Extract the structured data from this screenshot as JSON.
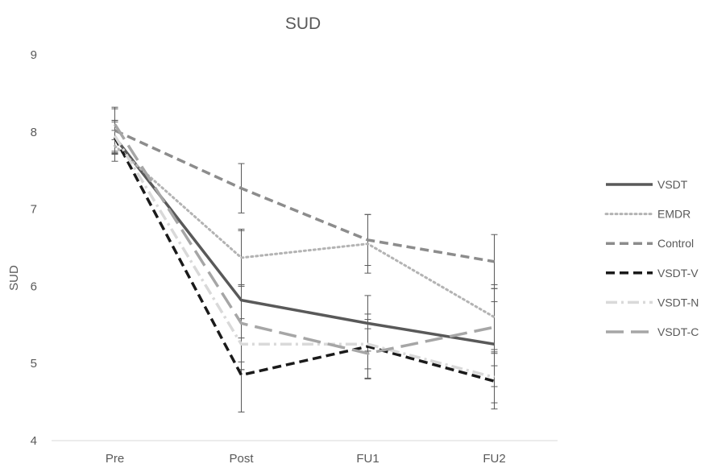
{
  "chart_data": {
    "type": "line",
    "title": "SUD",
    "xlabel": "",
    "ylabel": "SUD",
    "categories": [
      "Pre",
      "Post",
      "FU1",
      "FU2"
    ],
    "ylim": [
      4,
      9
    ],
    "yticks": [
      "4",
      "5",
      "6",
      "7",
      "8",
      "9"
    ],
    "grid": false,
    "legend_position": "right",
    "series": [
      {
        "name": "VSDT",
        "values": [
          7.93,
          5.82,
          5.52,
          5.25
        ],
        "error": [
          0.2,
          0.9,
          0.36,
          0.55
        ],
        "color": "#595959",
        "dash": "solid",
        "width": 3.5
      },
      {
        "name": "EMDR",
        "values": [
          7.82,
          6.37,
          6.55,
          5.6
        ],
        "error": [
          0.2,
          0.37,
          0.38,
          0.42
        ],
        "color": "#b3b3b3",
        "dash": "dot",
        "width": 3
      },
      {
        "name": "Control",
        "values": [
          8.02,
          7.27,
          6.6,
          6.32
        ],
        "error": [
          0.3,
          0.32,
          0.33,
          0.35
        ],
        "color": "#8c8c8c",
        "dash": "dash",
        "width": 3.5
      },
      {
        "name": "VSDT-V",
        "values": [
          7.93,
          4.85,
          5.22,
          4.77
        ],
        "error": [
          0.22,
          0.48,
          0.42,
          0.36
        ],
        "color": "#1a1a1a",
        "dash": "dash",
        "width": 3.5
      },
      {
        "name": "VSDT-N",
        "values": [
          7.95,
          5.25,
          5.25,
          4.82
        ],
        "error": [
          0.2,
          0.33,
          0.32,
          0.33
        ],
        "color": "#d9d9d9",
        "dash": "dashdot",
        "width": 3.5
      },
      {
        "name": "VSDT-C",
        "values": [
          8.1,
          5.52,
          5.13,
          5.47
        ],
        "error": [
          0.2,
          0.5,
          0.32,
          0.5
        ],
        "color": "#a6a6a6",
        "dash": "longdash",
        "width": 3.5
      }
    ]
  }
}
